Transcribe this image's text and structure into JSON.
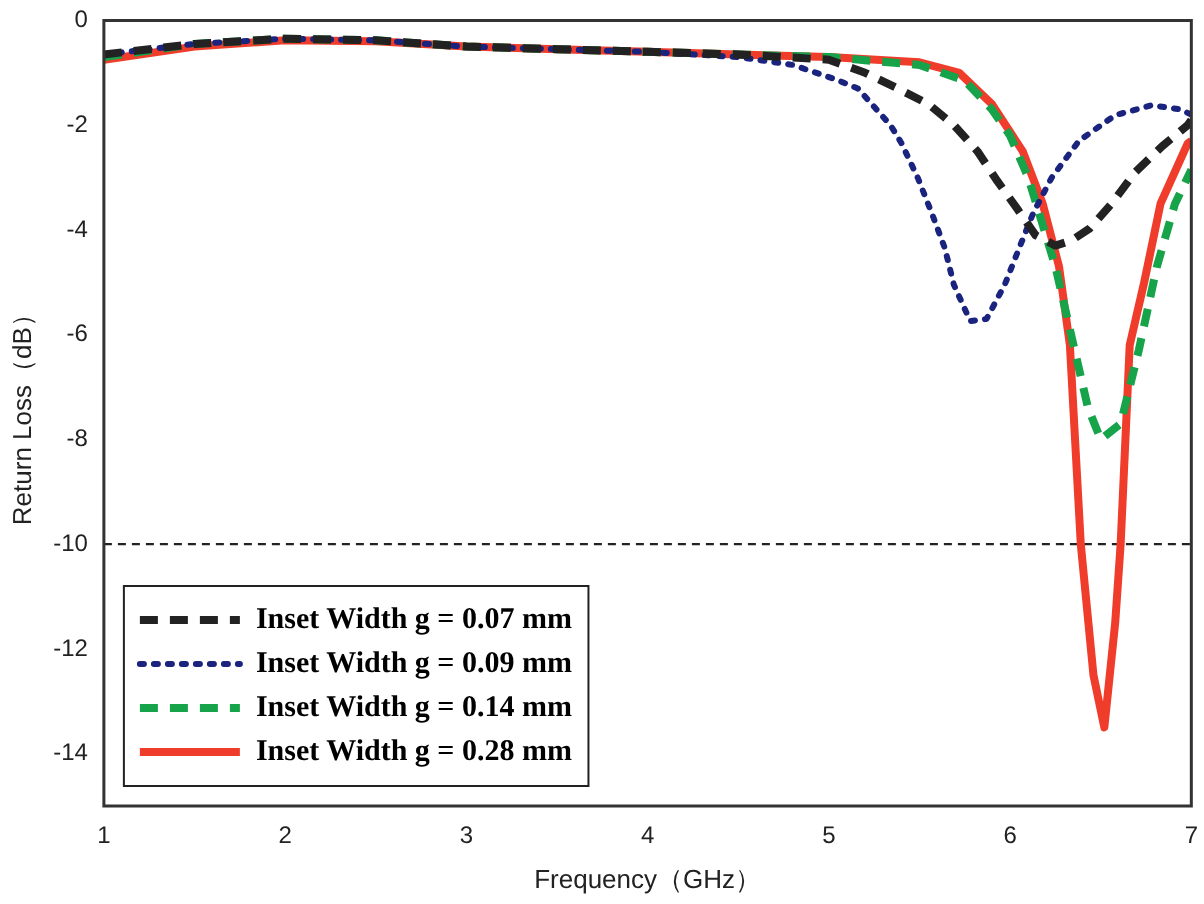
{
  "chart_data": {
    "type": "line",
    "xlabel": "Frequency（GHz）",
    "ylabel": "Return Loss（dB）",
    "xlim": [
      1,
      7
    ],
    "xticks": [
      1,
      2,
      3,
      4,
      5,
      6,
      7
    ],
    "ylim": [
      -15,
      0
    ],
    "yticks": [
      -14,
      -12,
      -10,
      -8,
      -6,
      -4,
      -2,
      0
    ],
    "grid": false,
    "legend": "bottom left",
    "marker": "none",
    "ref_lines": [
      {
        "axis": "y",
        "value": -10,
        "color": "#222222",
        "line_style": "dashed"
      }
    ],
    "series": [
      {
        "name": "Inset Width g = 0.07 mm",
        "color": "#222222",
        "line_style": "dashed",
        "x": [
          1,
          1.5,
          2,
          2.5,
          3,
          3.5,
          4,
          4.5,
          5,
          5.2,
          5.38,
          5.55,
          5.69,
          5.82,
          5.93,
          6.04,
          6.14,
          6.25,
          6.34,
          6.44,
          6.56,
          6.69,
          6.84,
          6.98,
          7
        ],
        "values": [
          -0.65,
          -0.45,
          -0.35,
          -0.38,
          -0.5,
          -0.55,
          -0.6,
          -0.65,
          -0.75,
          -1.0,
          -1.3,
          -1.6,
          -2.0,
          -2.5,
          -3.07,
          -3.6,
          -4.1,
          -4.3,
          -4.2,
          -3.97,
          -3.5,
          -2.9,
          -2.4,
          -2.0,
          -1.9
        ]
      },
      {
        "name": "Inset Width g = 0.09 mm",
        "color": "#1a237e",
        "line_style": "dotted",
        "x": [
          1,
          1.5,
          2,
          2.5,
          3,
          3.5,
          4,
          4.5,
          4.8,
          5.04,
          5.16,
          5.25,
          5.34,
          5.4,
          5.49,
          5.57,
          5.64,
          5.69,
          5.78,
          5.87,
          5.97,
          6.05,
          6.13,
          6.23,
          6.38,
          6.58,
          6.78,
          6.94,
          7
        ],
        "values": [
          -0.65,
          -0.45,
          -0.35,
          -0.38,
          -0.5,
          -0.55,
          -0.6,
          -0.7,
          -0.85,
          -1.13,
          -1.3,
          -1.65,
          -2.0,
          -2.34,
          -3.0,
          -3.7,
          -4.35,
          -5.05,
          -5.74,
          -5.7,
          -5.05,
          -4.35,
          -3.66,
          -3.0,
          -2.3,
          -1.81,
          -1.62,
          -1.7,
          -1.8
        ]
      },
      {
        "name": "Inset Width g = 0.14 mm",
        "color": "#16a34a",
        "line_style": "dashed",
        "x": [
          1,
          1.5,
          2,
          2.5,
          3,
          3.5,
          4,
          4.5,
          5,
          5.5,
          5.75,
          5.9,
          6.0,
          6.1,
          6.25,
          6.35,
          6.43,
          6.5,
          6.61,
          6.71,
          6.81,
          6.91,
          7
        ],
        "values": [
          -0.7,
          -0.45,
          -0.35,
          -0.38,
          -0.5,
          -0.55,
          -0.6,
          -0.65,
          -0.7,
          -0.85,
          -1.15,
          -1.7,
          -2.2,
          -3.0,
          -4.7,
          -6.2,
          -7.4,
          -8.0,
          -7.7,
          -6.3,
          -4.7,
          -3.5,
          -2.85
        ]
      },
      {
        "name": "Inset Width g = 0.28 mm",
        "color": "#f03c2a",
        "line_style": "solid",
        "x": [
          1,
          1.5,
          2,
          2.5,
          3,
          3.5,
          4,
          4.5,
          5,
          5.5,
          5.72,
          5.9,
          6.07,
          6.18,
          6.27,
          6.33,
          6.39,
          6.46,
          6.52,
          6.58,
          6.61,
          6.66,
          6.74,
          6.83,
          6.98,
          7
        ],
        "values": [
          -0.75,
          -0.5,
          -0.38,
          -0.4,
          -0.5,
          -0.55,
          -0.6,
          -0.65,
          -0.7,
          -0.8,
          -1.0,
          -1.6,
          -2.5,
          -3.5,
          -4.7,
          -6.2,
          -10,
          -12.5,
          -13.5,
          -11.5,
          -10,
          -6.2,
          -5.0,
          -3.5,
          -2.35,
          -2.3
        ]
      }
    ]
  }
}
